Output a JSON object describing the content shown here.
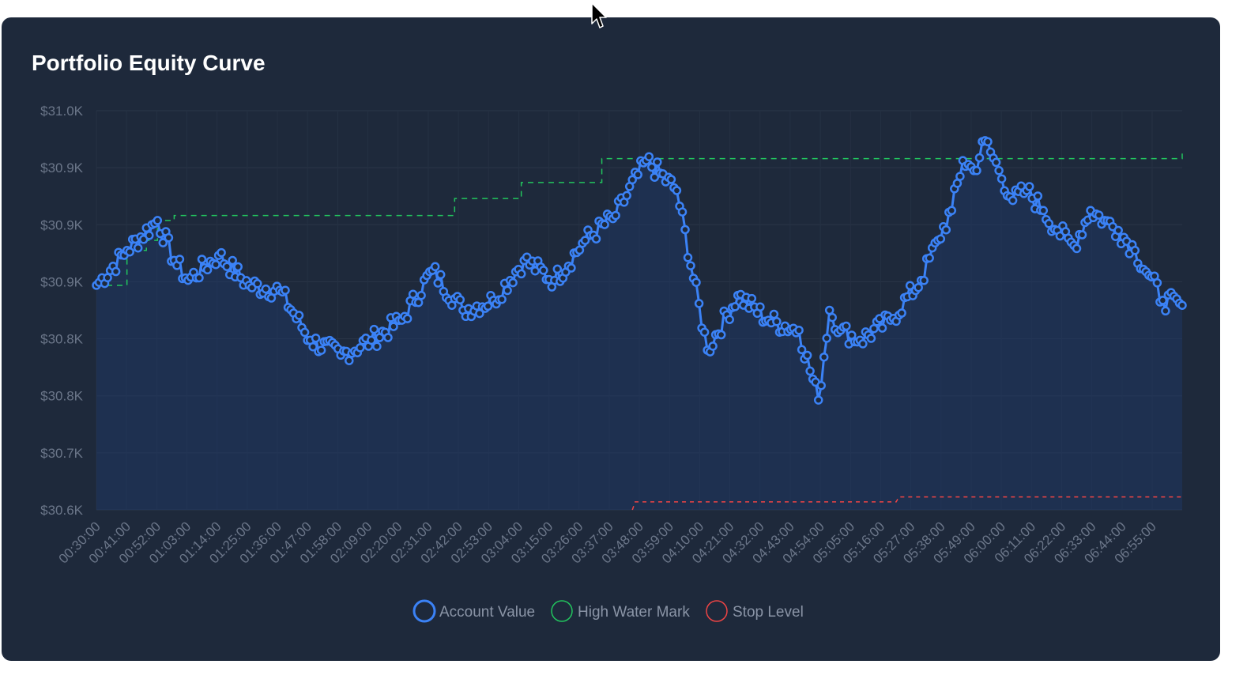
{
  "chart_data": {
    "type": "line",
    "title": "Portfolio Equity Curve",
    "y_tick_labels": [
      "$31.0K",
      "$30.9K",
      "$30.9K",
      "$30.9K",
      "$30.8K",
      "$30.8K",
      "$30.7K",
      "$30.6K"
    ],
    "ylim": [
      30600,
      31000
    ],
    "x_tick_labels": [
      "00:30:00",
      "00:41:00",
      "00:52:00",
      "01:03:00",
      "01:14:00",
      "01:25:00",
      "01:36:00",
      "01:47:00",
      "01:58:00",
      "02:09:00",
      "02:20:00",
      "02:31:00",
      "02:42:00",
      "02:53:00",
      "03:04:00",
      "03:15:00",
      "03:26:00",
      "03:37:00",
      "03:48:00",
      "03:59:00",
      "04:10:00",
      "04:21:00",
      "04:32:00",
      "04:43:00",
      "04:54:00",
      "05:05:00",
      "05:16:00",
      "05:27:00",
      "05:38:00",
      "05:49:00",
      "06:00:00",
      "06:11:00",
      "06:22:00",
      "06:33:00",
      "06:44:00",
      "06:55:00"
    ],
    "x_range_minutes": [
      30,
      421
    ],
    "grid": true,
    "legend_position": "bottom",
    "series": [
      {
        "name": "Account Value",
        "color": "#3b82f6",
        "x": [
          30,
          41,
          52,
          58,
          63,
          74,
          85,
          96,
          107,
          118,
          129,
          140,
          151,
          162,
          173,
          184,
          195,
          206,
          217,
          228,
          239,
          250,
          261,
          272,
          283,
          290,
          294,
          298,
          305,
          316,
          327,
          333,
          338,
          342,
          346,
          350,
          355,
          360,
          365,
          371,
          376,
          382,
          388,
          393,
          398,
          404,
          409,
          414,
          421
        ],
        "y": [
          30825,
          30860,
          30890,
          30850,
          30830,
          30855,
          30825,
          30820,
          30770,
          30755,
          30770,
          30790,
          30840,
          30800,
          30810,
          30850,
          30830,
          30870,
          30895,
          30950,
          30920,
          30760,
          30815,
          30790,
          30780,
          30710,
          30800,
          30780,
          30770,
          30790,
          30830,
          30870,
          30900,
          30950,
          30940,
          30970,
          30940,
          30910,
          30920,
          30900,
          30880,
          30865,
          30900,
          30890,
          30880,
          30860,
          30835,
          30810,
          30805
        ]
      },
      {
        "name": "High Water Mark",
        "color": "#22c55e",
        "x": [
          30,
          41,
          48,
          52,
          58,
          121,
          151,
          159,
          175,
          183,
          207,
          212,
          289,
          388,
          421
        ],
        "y": [
          30825,
          30860,
          30870,
          30890,
          30895,
          30895,
          30895,
          30912,
          30912,
          30928,
          30928,
          30952,
          30952,
          30952,
          30957
        ]
      },
      {
        "name": "Stop Level",
        "color": "#ef4444",
        "x": [
          223,
          224,
          318,
          319,
          421
        ],
        "y": [
          30600,
          30608,
          30608,
          30613,
          30613
        ]
      }
    ]
  },
  "legend": {
    "account_value": "Account Value",
    "high_water_mark": "High Water Mark",
    "stop_level": "Stop Level"
  }
}
